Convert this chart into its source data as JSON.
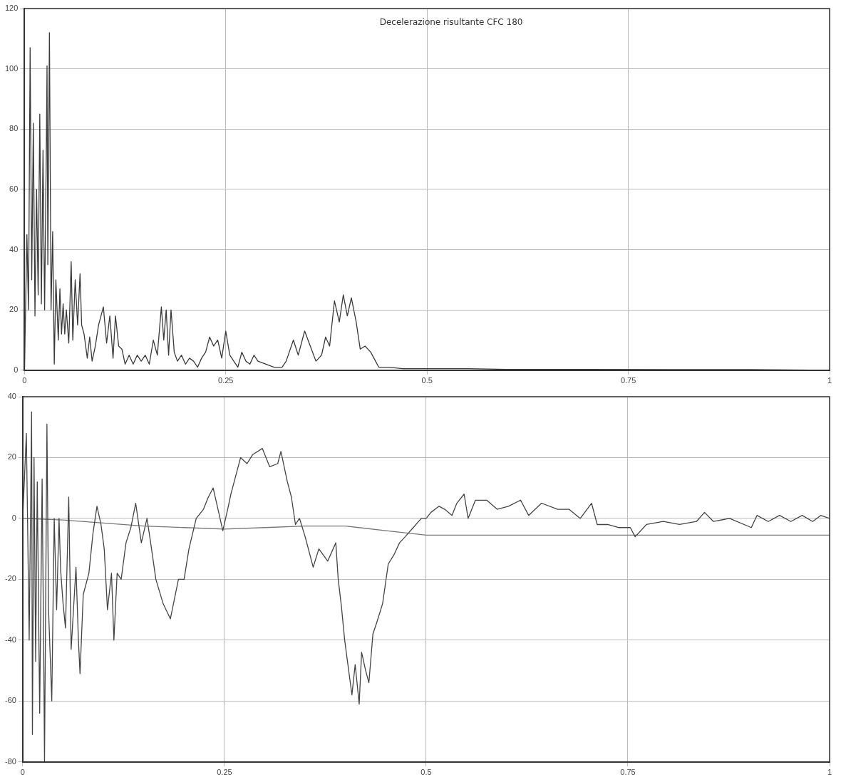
{
  "chart_data": [
    {
      "type": "line",
      "title": "Decelerazione risultante CFC 180",
      "xlim": [
        0,
        1
      ],
      "xticks": [
        0,
        0.25,
        0.5,
        0.75,
        1
      ],
      "ylim": [
        0,
        120
      ],
      "yticks": [
        0,
        20,
        40,
        60,
        80,
        100,
        120
      ],
      "grid": true,
      "series": [
        {
          "color": "#3a3a3a",
          "x": [
            0,
            0.003,
            0.005,
            0.007,
            0.009,
            0.011,
            0.013,
            0.015,
            0.017,
            0.019,
            0.021,
            0.023,
            0.025,
            0.027,
            0.028,
            0.029,
            0.031,
            0.033,
            0.035,
            0.037,
            0.039,
            0.042,
            0.044,
            0.046,
            0.048,
            0.05,
            0.052,
            0.055,
            0.058,
            0.06,
            0.063,
            0.066,
            0.069,
            0.071,
            0.074,
            0.078,
            0.081,
            0.084,
            0.088,
            0.092,
            0.098,
            0.102,
            0.106,
            0.11,
            0.113,
            0.117,
            0.121,
            0.125,
            0.13,
            0.135,
            0.14,
            0.145,
            0.15,
            0.155,
            0.16,
            0.165,
            0.17,
            0.173,
            0.176,
            0.179,
            0.182,
            0.186,
            0.19,
            0.195,
            0.2,
            0.205,
            0.21,
            0.215,
            0.22,
            0.225,
            0.23,
            0.235,
            0.24,
            0.245,
            0.25,
            0.255,
            0.26,
            0.265,
            0.27,
            0.275,
            0.28,
            0.285,
            0.29,
            0.3,
            0.31,
            0.32,
            0.325,
            0.334,
            0.34,
            0.348,
            0.355,
            0.362,
            0.369,
            0.374,
            0.379,
            0.385,
            0.391,
            0.396,
            0.401,
            0.406,
            0.412,
            0.417,
            0.423,
            0.43,
            0.44,
            0.447,
            0.452,
            0.47,
            0.5,
            0.55,
            0.6,
            0.7,
            0.8,
            0.9,
            1
          ],
          "values": [
            0,
            45,
            20,
            107,
            30,
            82,
            18,
            60,
            25,
            85,
            22,
            73,
            20,
            70,
            101,
            35,
            112,
            20,
            46,
            2,
            30,
            10,
            27,
            12,
            22,
            12,
            20,
            9,
            36,
            10,
            30,
            15,
            32,
            15,
            12,
            4,
            11,
            3,
            8,
            15,
            21,
            9,
            18,
            4,
            18,
            8,
            7,
            2,
            5,
            2,
            5,
            3,
            5,
            2,
            10,
            5,
            21,
            10,
            20,
            5,
            20,
            6,
            3,
            5,
            2,
            4,
            3,
            1,
            4,
            6,
            11,
            8,
            10,
            4,
            13,
            5,
            3,
            1,
            6,
            3,
            2,
            5,
            3,
            2,
            1,
            1,
            3,
            10,
            5,
            13,
            8,
            3,
            5,
            11,
            8,
            23,
            16,
            25,
            18,
            24,
            16,
            7,
            8,
            6,
            1,
            1,
            1,
            0.5,
            0.5,
            0.5,
            0.3,
            0.3,
            0.2,
            0.2,
            0
          ]
        }
      ]
    },
    {
      "type": "line",
      "xlim": [
        0,
        1
      ],
      "xticks": [
        0,
        0.25,
        0.5,
        0.75,
        1
      ],
      "ylim": [
        -80,
        40
      ],
      "yticks": [
        -80,
        -60,
        -40,
        -20,
        0,
        20,
        40
      ],
      "grid": true,
      "series": [
        {
          "color": "#444444",
          "x": [
            0,
            0.0045,
            0.008,
            0.011,
            0.012,
            0.014,
            0.016,
            0.018,
            0.021,
            0.024,
            0.026,
            0.027,
            0.03,
            0.032,
            0.036,
            0.039,
            0.042,
            0.045,
            0.047,
            0.05,
            0.053,
            0.057,
            0.06,
            0.066,
            0.069,
            0.071,
            0.075,
            0.082,
            0.087,
            0.092,
            0.097,
            0.101,
            0.105,
            0.11,
            0.113,
            0.117,
            0.122,
            0.128,
            0.134,
            0.14,
            0.147,
            0.154,
            0.158,
            0.165,
            0.174,
            0.183,
            0.193,
            0.2,
            0.206,
            0.215,
            0.224,
            0.23,
            0.236,
            0.242,
            0.248,
            0.254,
            0.258,
            0.265,
            0.27,
            0.278,
            0.285,
            0.297,
            0.306,
            0.316,
            0.32,
            0.328,
            0.333,
            0.338,
            0.343,
            0.35,
            0.36,
            0.367,
            0.378,
            0.388,
            0.391,
            0.395,
            0.399,
            0.403,
            0.408,
            0.412,
            0.417,
            0.42,
            0.425,
            0.429,
            0.434,
            0.439,
            0.446,
            0.453,
            0.46,
            0.467,
            0.474,
            0.484,
            0.494,
            0.5,
            0.506,
            0.516,
            0.523,
            0.532,
            0.538,
            0.547,
            0.552,
            0.561,
            0.575,
            0.588,
            0.602,
            0.617,
            0.627,
            0.643,
            0.663,
            0.677,
            0.691,
            0.705,
            0.712,
            0.725,
            0.739,
            0.753,
            0.759,
            0.773,
            0.794,
            0.814,
            0.835,
            0.845,
            0.856,
            0.876,
            0.903,
            0.91,
            0.924,
            0.938,
            0.952,
            0.966,
            0.979,
            0.989,
            1
          ],
          "values": [
            0,
            28,
            -40,
            35,
            -71,
            20,
            -47,
            12,
            -64,
            13,
            -44,
            -80,
            31,
            -30,
            -60,
            0,
            -30,
            0,
            -17,
            -28,
            -36,
            7,
            -43,
            -16,
            -40,
            -51,
            -25,
            -18,
            -5,
            4,
            -2,
            -10,
            -30,
            -18,
            -40,
            -18,
            -20,
            -8,
            -3,
            5,
            -8,
            0,
            -7,
            -20,
            -28,
            -33,
            -20,
            -20,
            -10,
            0,
            3,
            7,
            10,
            3,
            -4,
            3,
            8,
            15,
            20,
            18,
            21,
            23,
            17,
            18,
            22,
            12,
            7,
            -2,
            0,
            -6,
            -16,
            -10,
            -14,
            -8,
            -20,
            -29,
            -40,
            -48,
            -58,
            -48,
            -61,
            -44,
            -50,
            -54,
            -38,
            -34,
            -28,
            -15,
            -12,
            -8,
            -6,
            -3,
            0,
            0,
            2,
            4,
            3,
            1,
            5,
            8,
            0,
            6,
            6,
            3,
            4,
            6,
            1,
            5,
            3,
            3,
            0,
            5,
            -2,
            -2,
            -3,
            -3,
            -6,
            -2,
            -1,
            -2,
            -1,
            2,
            -1,
            0,
            -3,
            1,
            -1,
            1,
            -1,
            1,
            -1,
            1,
            0
          ]
        },
        {
          "color": "#777777",
          "x": [
            0,
            0.05,
            0.1,
            0.15,
            0.2,
            0.25,
            0.3,
            0.35,
            0.4,
            0.45,
            0.5,
            0.6,
            0.7,
            0.75,
            1
          ],
          "values": [
            0,
            -0.5,
            -1.5,
            -2.5,
            -3,
            -3.5,
            -3,
            -2.5,
            -2.5,
            -4,
            -5.5,
            -5.5,
            -5.5,
            -5.5,
            -5.5
          ]
        }
      ]
    }
  ]
}
